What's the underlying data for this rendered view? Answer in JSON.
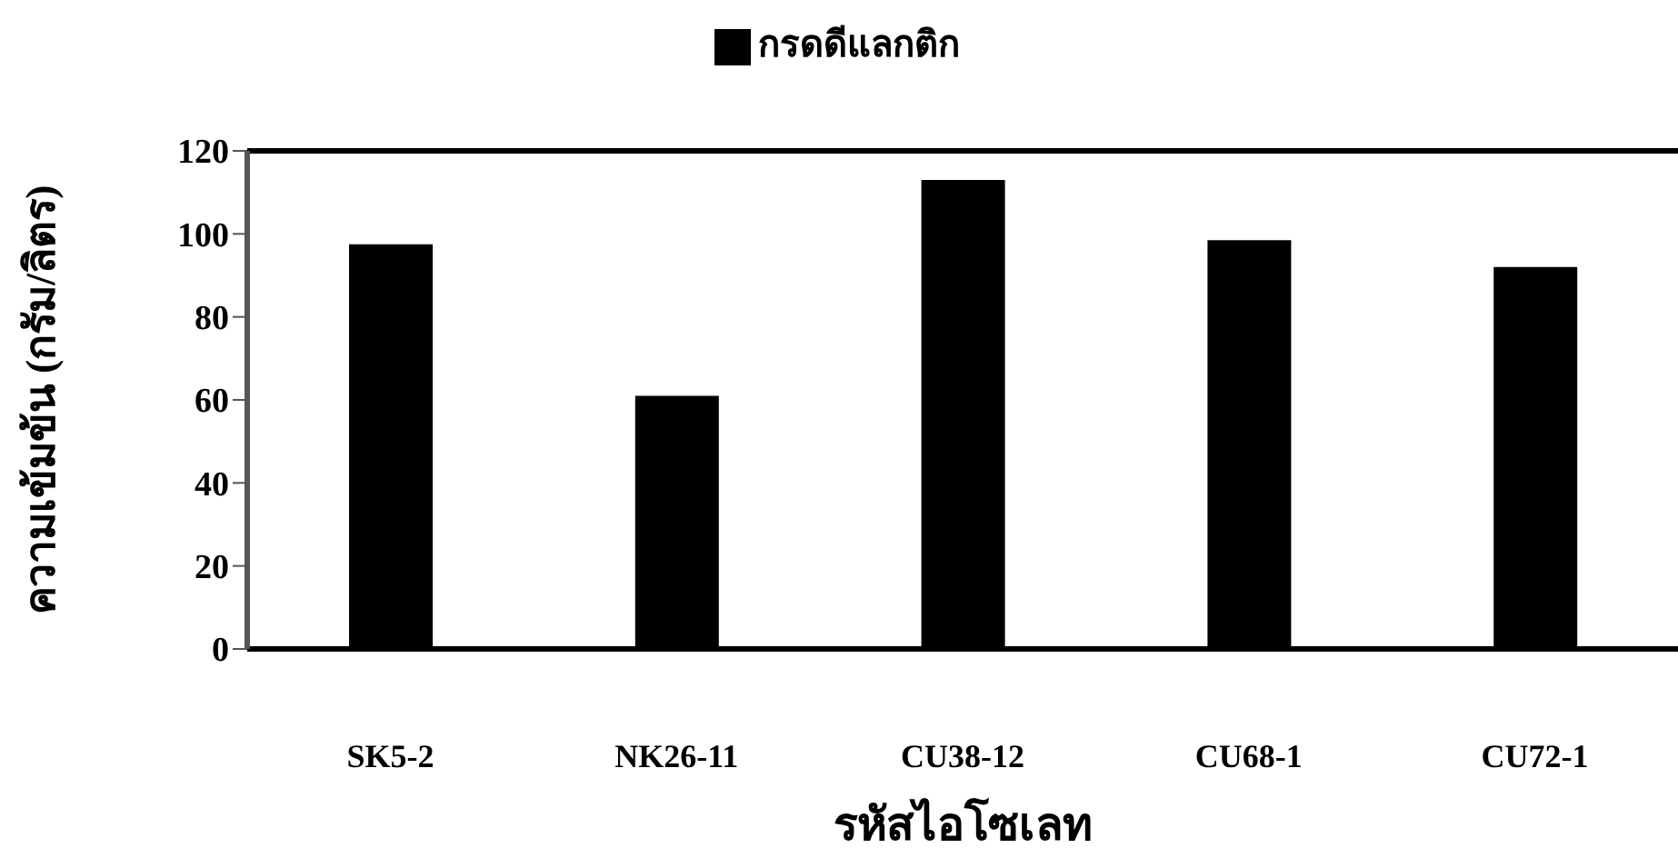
{
  "chart_data": {
    "type": "bar",
    "xlabel": "รหัสไอโซเลท",
    "ylabel": "ความเข้มข้น  (กรัม/ลิตร)",
    "categories": [
      "SK5-2",
      "NK26-11",
      "CU38-12",
      "CU68-1",
      "CU72-1"
    ],
    "series": [
      {
        "name": "กรดดีแลกติก",
        "color": "#000000",
        "values": [
          97.5,
          61,
          113,
          98.5,
          92
        ]
      }
    ],
    "ylim": [
      0,
      120
    ],
    "yticks": [
      0,
      20,
      40,
      60,
      80,
      100,
      120
    ],
    "grid": false,
    "legend": "top"
  }
}
